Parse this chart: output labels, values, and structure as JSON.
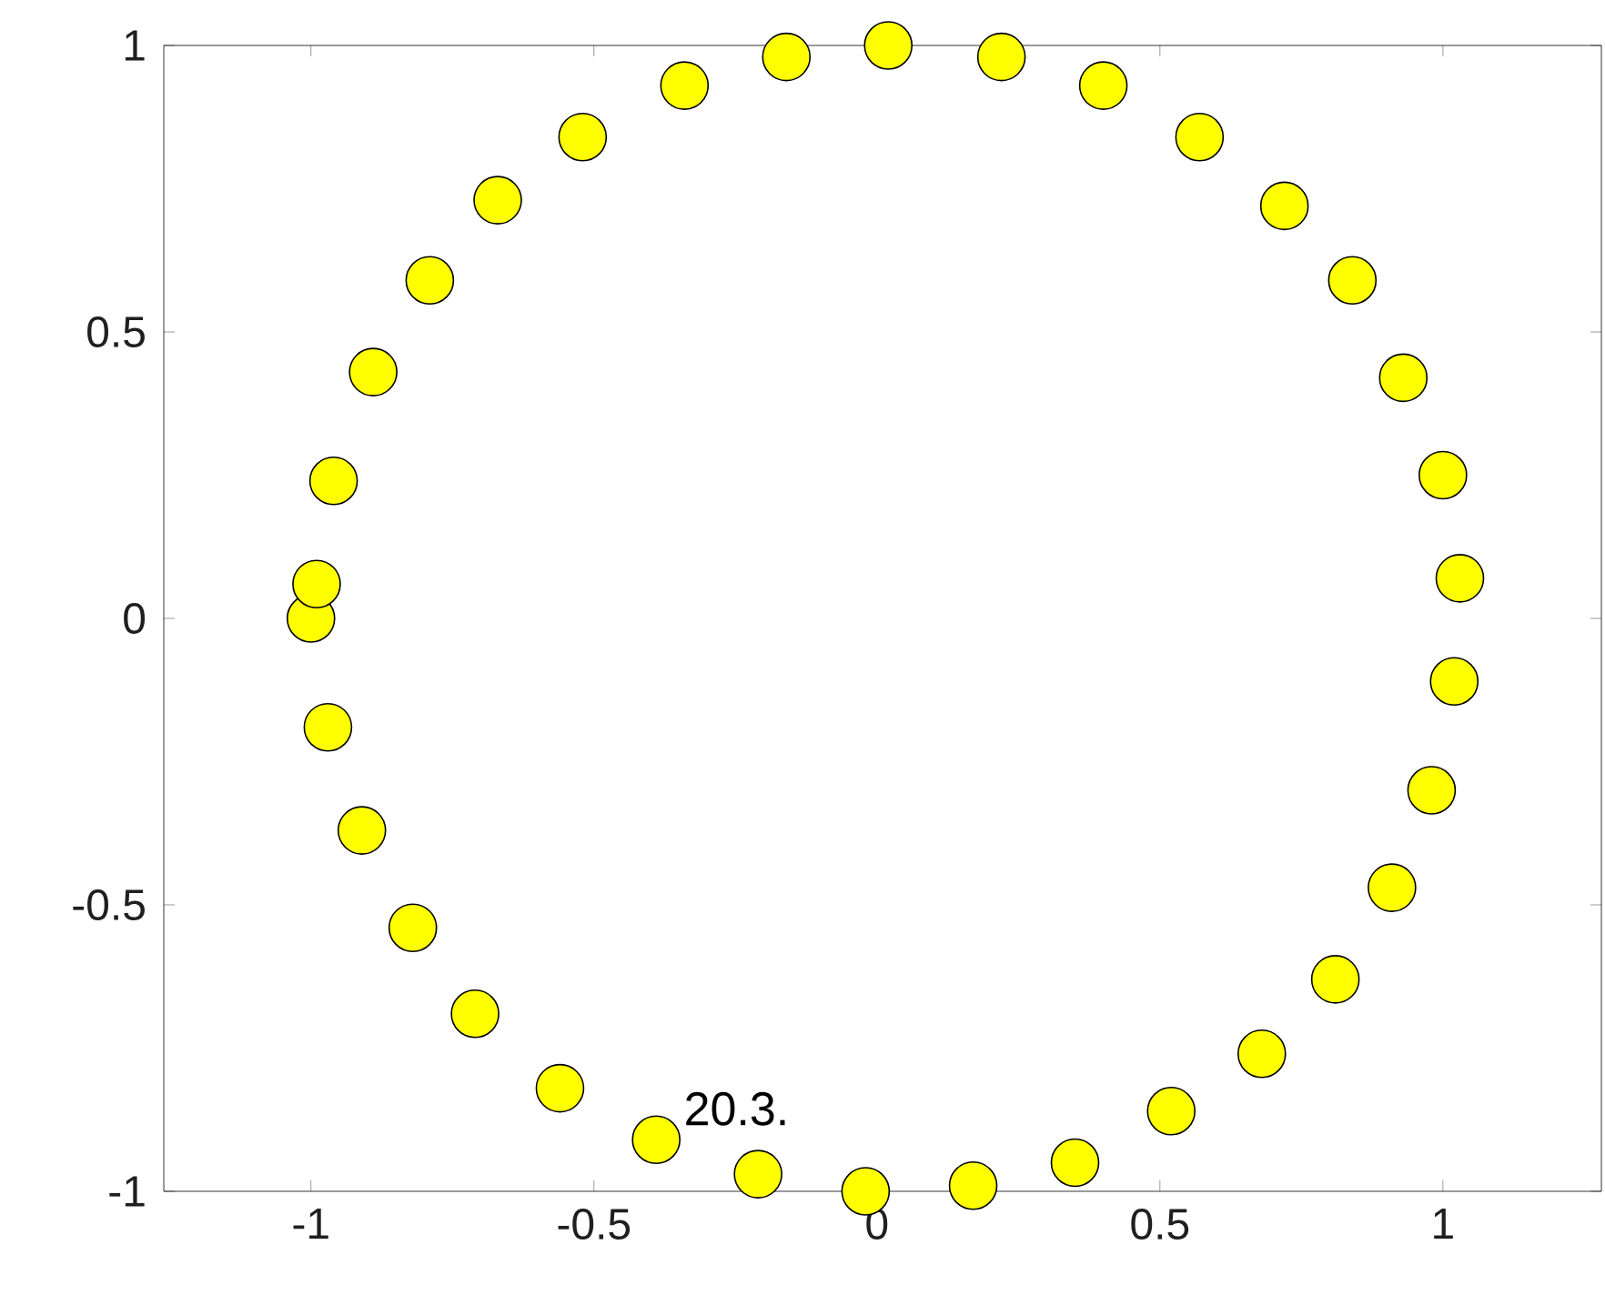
{
  "chart_data": {
    "type": "scatter",
    "xlim": [
      -1.26,
      1.28
    ],
    "ylim": [
      -1,
      1
    ],
    "xticks": [
      -1,
      -0.5,
      0,
      0.5,
      1
    ],
    "yticks": [
      -1,
      -0.5,
      0,
      0.5,
      1
    ],
    "grid": false,
    "series": [
      {
        "color": "#ffff00",
        "x": [
          0.02,
          0.22,
          0.4,
          0.57,
          0.72,
          0.84,
          0.93,
          1.0,
          1.03,
          1.02,
          0.98,
          0.91,
          0.81,
          0.68,
          0.52,
          0.35,
          0.17,
          -0.02,
          -0.21,
          -0.39,
          -0.56,
          -0.71,
          -0.82,
          -0.91,
          -0.97,
          -1.0,
          -0.99,
          -0.96,
          -0.89,
          -0.79,
          -0.67,
          -0.52,
          -0.34,
          -0.16
        ],
        "values": [
          1.0,
          0.98,
          0.93,
          0.84,
          0.72,
          0.59,
          0.42,
          0.25,
          0.07,
          -0.11,
          -0.3,
          -0.47,
          -0.63,
          -0.76,
          -0.86,
          -0.95,
          -0.99,
          -1.0,
          -0.97,
          -0.91,
          -0.82,
          -0.69,
          -0.54,
          -0.37,
          -0.19,
          0.0,
          0.06,
          0.24,
          0.43,
          0.59,
          0.73,
          0.84,
          0.93,
          0.98
        ]
      }
    ],
    "annotations": [
      {
        "text": "20.3.",
        "x": -0.39,
        "y": -0.91
      }
    ]
  }
}
